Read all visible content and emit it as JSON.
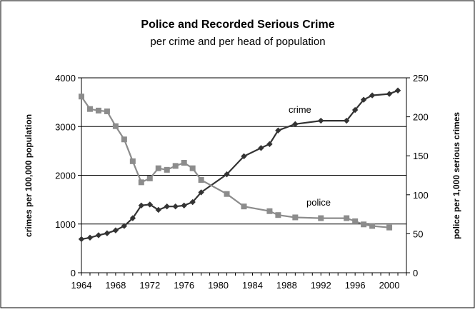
{
  "chart_data": {
    "type": "line",
    "title": "Police and Recorded Serious Crime",
    "subtitle": "per crime and per head of population",
    "ylabel_left": "crimes per 100,000 population",
    "ylabel_right": "police per 1,000 serious crimes",
    "xlim": [
      1964,
      2002
    ],
    "ylim_left": [
      0,
      4000
    ],
    "ylim_right": [
      0,
      250
    ],
    "x_ticks": [
      "1964",
      "1968",
      "1972",
      "1976",
      "1980",
      "1984",
      "1988",
      "1992",
      "1996",
      "2000"
    ],
    "y_left_ticks": [
      "0",
      "1000",
      "2000",
      "3000",
      "4000"
    ],
    "y_right_ticks": [
      "0",
      "50",
      "100",
      "150",
      "200",
      "250"
    ],
    "grid": "horizontal",
    "series": [
      {
        "name": "crime",
        "axis": "left",
        "color": "#333333",
        "marker": "diamond",
        "x": [
          1964,
          1965,
          1966,
          1967,
          1968,
          1969,
          1970,
          1971,
          1972,
          1973,
          1974,
          1975,
          1976,
          1977,
          1978,
          1981,
          1983,
          1985,
          1986,
          1987,
          1989,
          1992,
          1995,
          1996,
          1997,
          1998,
          2000,
          2001
        ],
        "y": [
          690,
          720,
          770,
          810,
          870,
          960,
          1120,
          1380,
          1400,
          1290,
          1360,
          1360,
          1380,
          1450,
          1650,
          2020,
          2390,
          2560,
          2640,
          2920,
          3050,
          3120,
          3120,
          3340,
          3550,
          3640,
          3670,
          3740
        ]
      },
      {
        "name": "police",
        "axis": "right",
        "color": "#8c8c8c",
        "marker": "square",
        "x": [
          1964,
          1965,
          1966,
          1967,
          1968,
          1969,
          1970,
          1971,
          1972,
          1973,
          1974,
          1975,
          1976,
          1977,
          1978,
          1981,
          1983,
          1986,
          1987,
          1989,
          1992,
          1995,
          1996,
          1997,
          1998,
          2000
        ],
        "y": [
          226,
          210,
          208,
          207,
          188,
          171,
          143,
          116,
          121,
          134,
          132,
          137,
          141,
          134,
          119,
          101,
          85,
          79,
          74,
          71,
          70,
          70,
          66,
          62,
          60,
          58
        ]
      }
    ],
    "annotations": [
      "crime",
      "police"
    ]
  }
}
